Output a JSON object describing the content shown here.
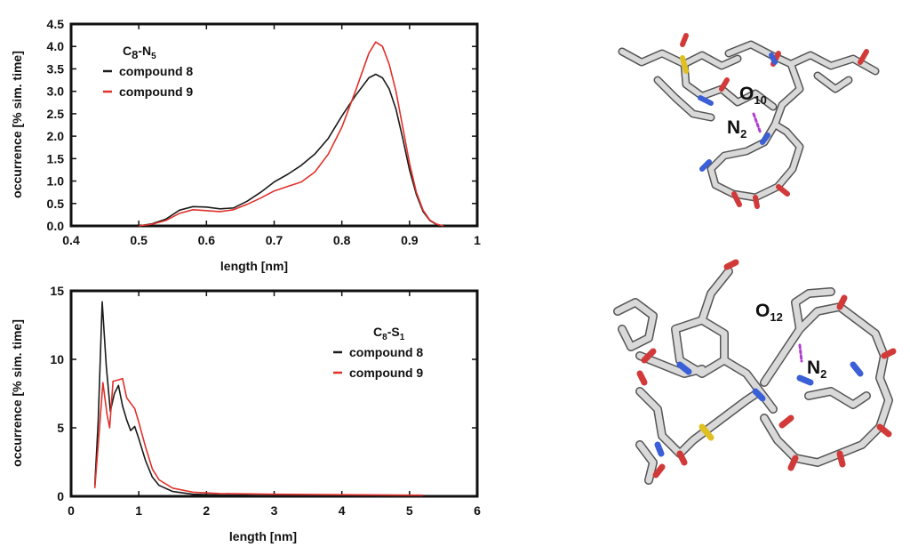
{
  "chart_data": [
    {
      "type": "line",
      "legend_title": "C",
      "legend_title_sub1": "8",
      "legend_title_mid": "-N",
      "legend_title_sub2": "5",
      "xlabel": "length [nm]",
      "ylabel": "occurrence  [% sim. time]",
      "xlim": [
        0.4,
        1.0
      ],
      "ylim": [
        0,
        4.5
      ],
      "x_ticks": [
        "0.4",
        "0.5",
        "0.6",
        "0.7",
        "0.8",
        "0.9",
        "1"
      ],
      "y_ticks": [
        "0.0",
        "0.5",
        "1.0",
        "1.5",
        "2.0",
        "2.5",
        "3.0",
        "3.5",
        "4.0",
        "4.5"
      ],
      "legend_placement": "top-left",
      "grid": false,
      "series": [
        {
          "name": "compound 8",
          "color": "#1a1a1a",
          "points": [
            [
              0.5,
              0.0
            ],
            [
              0.52,
              0.05
            ],
            [
              0.54,
              0.15
            ],
            [
              0.56,
              0.35
            ],
            [
              0.58,
              0.43
            ],
            [
              0.6,
              0.42
            ],
            [
              0.62,
              0.38
            ],
            [
              0.64,
              0.4
            ],
            [
              0.66,
              0.55
            ],
            [
              0.68,
              0.75
            ],
            [
              0.7,
              0.98
            ],
            [
              0.72,
              1.15
            ],
            [
              0.74,
              1.35
            ],
            [
              0.76,
              1.6
            ],
            [
              0.78,
              1.95
            ],
            [
              0.8,
              2.45
            ],
            [
              0.82,
              2.9
            ],
            [
              0.84,
              3.3
            ],
            [
              0.85,
              3.38
            ],
            [
              0.86,
              3.3
            ],
            [
              0.87,
              3.05
            ],
            [
              0.88,
              2.6
            ],
            [
              0.89,
              1.95
            ],
            [
              0.9,
              1.25
            ],
            [
              0.91,
              0.7
            ],
            [
              0.92,
              0.32
            ],
            [
              0.93,
              0.12
            ],
            [
              0.94,
              0.03
            ],
            [
              0.95,
              0.0
            ]
          ]
        },
        {
          "name": "compound 9",
          "color": "#e0302a",
          "points": [
            [
              0.5,
              0.0
            ],
            [
              0.52,
              0.04
            ],
            [
              0.54,
              0.12
            ],
            [
              0.56,
              0.28
            ],
            [
              0.58,
              0.36
            ],
            [
              0.6,
              0.34
            ],
            [
              0.62,
              0.32
            ],
            [
              0.64,
              0.36
            ],
            [
              0.66,
              0.48
            ],
            [
              0.68,
              0.62
            ],
            [
              0.7,
              0.78
            ],
            [
              0.72,
              0.88
            ],
            [
              0.74,
              0.98
            ],
            [
              0.76,
              1.2
            ],
            [
              0.78,
              1.6
            ],
            [
              0.8,
              2.2
            ],
            [
              0.82,
              3.0
            ],
            [
              0.84,
              3.85
            ],
            [
              0.85,
              4.1
            ],
            [
              0.86,
              4.0
            ],
            [
              0.87,
              3.6
            ],
            [
              0.88,
              3.0
            ],
            [
              0.89,
              2.2
            ],
            [
              0.9,
              1.4
            ],
            [
              0.91,
              0.75
            ],
            [
              0.92,
              0.35
            ],
            [
              0.93,
              0.13
            ],
            [
              0.94,
              0.04
            ],
            [
              0.95,
              0.0
            ]
          ]
        }
      ]
    },
    {
      "type": "line",
      "legend_title": "C",
      "legend_title_sub1": "8",
      "legend_title_mid": "-S",
      "legend_title_sub2": "1",
      "xlabel": "length [nm]",
      "ylabel": "occurrence  [% sim. time]",
      "xlim": [
        0,
        6
      ],
      "ylim": [
        0,
        15
      ],
      "x_ticks": [
        "0",
        "1",
        "2",
        "3",
        "4",
        "5",
        "6"
      ],
      "y_ticks": [
        "0",
        "5",
        "10",
        "15"
      ],
      "legend_placement": "top-right",
      "grid": false,
      "series": [
        {
          "name": "compound 8",
          "color": "#1a1a1a",
          "points": [
            [
              0.35,
              0.8
            ],
            [
              0.4,
              5.5
            ],
            [
              0.46,
              14.2
            ],
            [
              0.52,
              9.5
            ],
            [
              0.58,
              6.2
            ],
            [
              0.64,
              7.5
            ],
            [
              0.7,
              8.1
            ],
            [
              0.76,
              6.6
            ],
            [
              0.82,
              5.6
            ],
            [
              0.88,
              4.8
            ],
            [
              0.94,
              5.1
            ],
            [
              1.0,
              4.2
            ],
            [
              1.1,
              2.6
            ],
            [
              1.2,
              1.4
            ],
            [
              1.3,
              0.8
            ],
            [
              1.5,
              0.35
            ],
            [
              1.8,
              0.15
            ],
            [
              2.2,
              0.1
            ],
            [
              3.0,
              0.05
            ],
            [
              4.0,
              0.03
            ],
            [
              5.2,
              0.0
            ]
          ]
        },
        {
          "name": "compound 9",
          "color": "#e0302a",
          "points": [
            [
              0.35,
              0.6
            ],
            [
              0.42,
              5.0
            ],
            [
              0.47,
              8.3
            ],
            [
              0.53,
              6.0
            ],
            [
              0.57,
              5.0
            ],
            [
              0.62,
              8.4
            ],
            [
              0.7,
              8.5
            ],
            [
              0.76,
              8.6
            ],
            [
              0.82,
              7.2
            ],
            [
              0.88,
              6.8
            ],
            [
              0.94,
              6.4
            ],
            [
              1.0,
              5.4
            ],
            [
              1.1,
              3.6
            ],
            [
              1.2,
              2.0
            ],
            [
              1.3,
              1.2
            ],
            [
              1.5,
              0.6
            ],
            [
              1.8,
              0.3
            ],
            [
              2.2,
              0.2
            ],
            [
              3.0,
              0.15
            ],
            [
              4.0,
              0.12
            ],
            [
              5.2,
              0.08
            ]
          ]
        }
      ]
    }
  ],
  "molecules": {
    "top": {
      "label_a": "O",
      "label_a_sub": "10",
      "label_b": "N",
      "label_b_sub": "2"
    },
    "bottom": {
      "label_a": "O",
      "label_a_sub": "12",
      "label_b": "N",
      "label_b_sub": "2"
    }
  }
}
